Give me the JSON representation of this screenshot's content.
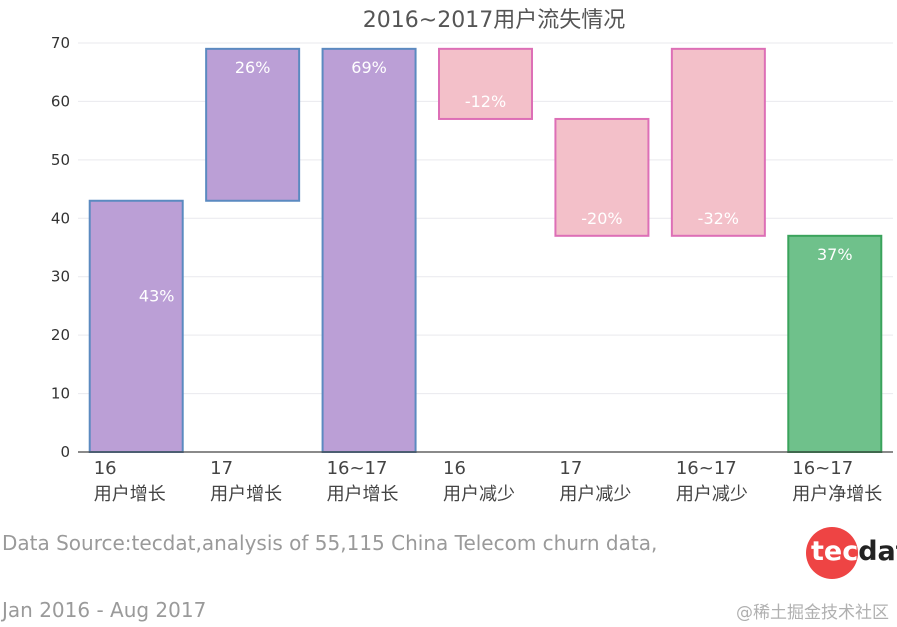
{
  "chart_data": {
    "type": "bar",
    "subtype": "waterfall",
    "title": "2016~2017用户流失情况",
    "xlabel": "",
    "ylabel": "",
    "ylim": [
      0,
      70
    ],
    "yticks": [
      0,
      10,
      20,
      30,
      40,
      50,
      60,
      70
    ],
    "grid": true,
    "legend": "none",
    "categories": [
      [
        "16",
        "用户增长"
      ],
      [
        "17",
        "用户增长"
      ],
      [
        "16~17",
        "用户增长"
      ],
      [
        "16",
        "用户减少"
      ],
      [
        "17",
        "用户减少"
      ],
      [
        "16~17",
        "用户减少"
      ],
      [
        "16~17",
        "用户净增长"
      ]
    ],
    "bars": [
      {
        "base": 0,
        "top": 43,
        "label": "43%",
        "kind": "increase"
      },
      {
        "base": 43,
        "top": 69,
        "label": "26%",
        "kind": "increase"
      },
      {
        "base": 0,
        "top": 69,
        "label": "69%",
        "kind": "increase"
      },
      {
        "base": 57,
        "top": 69,
        "label": "-12%",
        "kind": "decrease"
      },
      {
        "base": 37,
        "top": 57,
        "label": "-20%",
        "kind": "decrease"
      },
      {
        "base": 37,
        "top": 69,
        "label": "-32%",
        "kind": "decrease"
      },
      {
        "base": 0,
        "top": 37,
        "label": "37%",
        "kind": "net"
      }
    ],
    "colors": {
      "increase": {
        "fill": "#bb9fd6",
        "stroke": "#5b8ac0"
      },
      "decrease": {
        "fill": "#f3c0c9",
        "stroke": "#dd6fb6"
      },
      "net": {
        "fill": "#6fc18b",
        "stroke": "#3aa35c"
      }
    }
  },
  "footer": {
    "source_line": "Data Source:tecdat,analysis of 55,115 China Telecom churn data,",
    "date_range": "Jan 2016 - Aug 2017"
  },
  "logo": {
    "text_part1": "tec",
    "text_part2": "dat",
    "circle_color": "#ee4444"
  },
  "watermark": "@稀土掘金技术社区"
}
